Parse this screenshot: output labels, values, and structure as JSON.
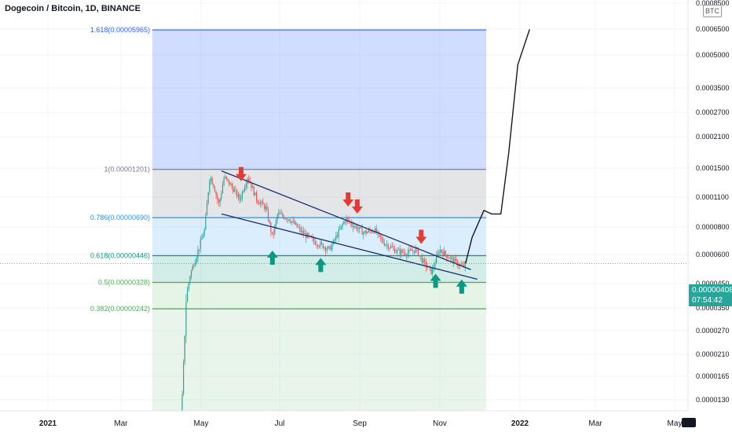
{
  "title": "Dogecoin / Bitcoin, 1D, BINANCE",
  "unit_label": "BTC",
  "current_price": "0.00000408",
  "countdown": "07:54:42",
  "colors": {
    "up": "#26a69a",
    "down": "#ef5350",
    "trend": "#1c2e6e",
    "arrow_down": "#e53935",
    "arrow_up": "#089981",
    "fib_1618": "#2962ff",
    "fib_1": "#787b86",
    "fib_0786": "#2196f3",
    "fib_0618": "#089981",
    "fib_05": "#4caf50",
    "fib_0382": "#4caf50"
  },
  "chart_data": {
    "type": "candlestick",
    "scale": "log",
    "x_ticks": [
      "2021",
      "Mar",
      "May",
      "Jul",
      "Sep",
      "Nov",
      "2022",
      "Mar",
      "May"
    ],
    "y_ticks": [
      "0.0000130",
      "0.0000165",
      "0.0000210",
      "0.0000270",
      "0.0000350",
      "0.0000450",
      "0.0000600",
      "0.0000800",
      "0.0001100",
      "0.0001500",
      "0.0002100",
      "0.0002700",
      "0.0003500",
      "0.0005000",
      "0.0006500",
      "0.0008500"
    ],
    "fib_levels": [
      {
        "label": "1.618(0.00005965)",
        "ratio": 1.618,
        "value": 5.965e-05
      },
      {
        "label": "1(0.00001201)",
        "ratio": 1,
        "value": 1.201e-05
      },
      {
        "label": "0.786(0.00000690)",
        "ratio": 0.786,
        "value": 6.9e-06
      },
      {
        "label": "0.618(0.00000446)",
        "ratio": 0.618,
        "value": 4.46e-06
      },
      {
        "label": "0.5(0.00000328)",
        "ratio": 0.5,
        "value": 3.28e-06
      },
      {
        "label": "0.382(0.00000242)",
        "ratio": 0.382,
        "value": 2.42e-06
      }
    ],
    "series": [
      {
        "name": "",
        "type": "close",
        "points": [
          {
            "date": "2021-01-05",
            "close": 1e-07
          },
          {
            "date": "2021-01-25",
            "close": 2e-07
          },
          {
            "date": "2021-02-05",
            "close": 4.5e-07
          },
          {
            "date": "2021-02-20",
            "close": 3.5e-07
          },
          {
            "date": "2021-03-10",
            "close": 3e-07
          },
          {
            "date": "2021-03-25",
            "close": 2.8e-07
          },
          {
            "date": "2021-04-10",
            "close": 3e-07
          },
          {
            "date": "2021-04-14",
            "close": 9e-07
          },
          {
            "date": "2021-04-17",
            "close": 2.8e-06
          },
          {
            "date": "2021-04-20",
            "close": 3.6e-06
          },
          {
            "date": "2021-04-25",
            "close": 4.5e-06
          },
          {
            "date": "2021-05-01",
            "close": 6e-06
          },
          {
            "date": "2021-05-05",
            "close": 1.12e-05
          },
          {
            "date": "2021-05-08",
            "close": 1e-05
          },
          {
            "date": "2021-05-12",
            "close": 8e-06
          },
          {
            "date": "2021-05-16",
            "close": 1.1e-05
          },
          {
            "date": "2021-05-22",
            "close": 9.8e-06
          },
          {
            "date": "2021-05-28",
            "close": 8.5e-06
          },
          {
            "date": "2021-06-03",
            "close": 1.11e-05
          },
          {
            "date": "2021-06-10",
            "close": 8.5e-06
          },
          {
            "date": "2021-06-17",
            "close": 7.7e-06
          },
          {
            "date": "2021-06-22",
            "close": 5.5e-06
          },
          {
            "date": "2021-06-26",
            "close": 7.2e-06
          },
          {
            "date": "2021-07-05",
            "close": 6.8e-06
          },
          {
            "date": "2021-07-15",
            "close": 5.8e-06
          },
          {
            "date": "2021-07-25",
            "close": 5.2e-06
          },
          {
            "date": "2021-08-05",
            "close": 4.8e-06
          },
          {
            "date": "2021-08-12",
            "close": 5.9e-06
          },
          {
            "date": "2021-08-17",
            "close": 6.8e-06
          },
          {
            "date": "2021-08-22",
            "close": 6.4e-06
          },
          {
            "date": "2021-08-31",
            "close": 5.8e-06
          },
          {
            "date": "2021-09-08",
            "close": 6e-06
          },
          {
            "date": "2021-09-15",
            "close": 5.2e-06
          },
          {
            "date": "2021-09-25",
            "close": 4.7e-06
          },
          {
            "date": "2021-10-03",
            "close": 4.6e-06
          },
          {
            "date": "2021-10-10",
            "close": 4.8e-06
          },
          {
            "date": "2021-10-16",
            "close": 4.1e-06
          },
          {
            "date": "2021-10-22",
            "close": 3.7e-06
          },
          {
            "date": "2021-10-28",
            "close": 4.8e-06
          },
          {
            "date": "2021-11-02",
            "close": 4.5e-06
          },
          {
            "date": "2021-11-08",
            "close": 4.2e-06
          },
          {
            "date": "2021-11-15",
            "close": 3.9e-06
          },
          {
            "date": "2021-11-17",
            "close": 4.08e-06
          }
        ]
      },
      {
        "name": "",
        "type": "projection",
        "points": [
          {
            "date": "2021-11-17",
            "close": 4.08e-06
          },
          {
            "date": "2021-11-22",
            "close": 5.5e-06
          },
          {
            "date": "2021-12-01",
            "close": 7.5e-06
          },
          {
            "date": "2021-12-07",
            "close": 7.2e-06
          },
          {
            "date": "2021-12-14",
            "close": 7.2e-06
          },
          {
            "date": "2021-12-20",
            "close": 1.45e-05
          },
          {
            "date": "2021-12-27",
            "close": 4e-05
          },
          {
            "date": "2022-01-05",
            "close": 6e-05
          }
        ]
      }
    ],
    "trendlines": [
      {
        "from": {
          "date": "2021-05-14",
          "value": 1.18e-05
        },
        "to": {
          "date": "2021-11-21",
          "value": 3.8e-06
        }
      },
      {
        "from": {
          "date": "2021-05-14",
          "value": 7.2e-06
        },
        "to": {
          "date": "2021-11-26",
          "value": 3.4e-06
        }
      }
    ],
    "annotations": [
      {
        "kind": "sell-arrow",
        "date": "2021-05-29"
      },
      {
        "kind": "sell-arrow",
        "date": "2021-08-19"
      },
      {
        "kind": "sell-arrow",
        "date": "2021-08-26"
      },
      {
        "kind": "sell-arrow",
        "date": "2021-10-14"
      },
      {
        "kind": "buy-arrow",
        "date": "2021-06-22"
      },
      {
        "kind": "buy-arrow",
        "date": "2021-07-29"
      },
      {
        "kind": "buy-arrow",
        "date": "2021-10-25"
      },
      {
        "kind": "buy-arrow",
        "date": "2021-11-14"
      }
    ],
    "grid": true,
    "legend": "none"
  }
}
